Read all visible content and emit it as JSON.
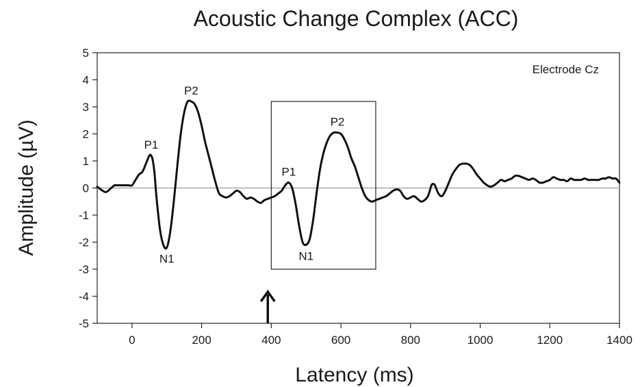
{
  "chart_data": {
    "type": "line",
    "title": "Acoustic Change Complex (ACC)",
    "xlabel": "Latency (ms)",
    "ylabel": "Amplitude (µV)",
    "xlim": [
      -100,
      1400
    ],
    "ylim": [
      -5,
      5
    ],
    "xticks": [
      0,
      200,
      400,
      600,
      800,
      1000,
      1200,
      1400
    ],
    "yticks": [
      5,
      4,
      3,
      2,
      1,
      0,
      -1,
      -2,
      -3,
      -4,
      -5
    ],
    "grid": false,
    "zero_line": true,
    "inset_label": "Electrode Cz",
    "box": {
      "x": [
        400,
        700
      ],
      "y": [
        -3,
        3.2
      ]
    },
    "arrow_at_x": 390,
    "peak_labels": [
      {
        "text": "P1",
        "x": 55,
        "y": 1.2
      },
      {
        "text": "N1",
        "x": 100,
        "y": -2.2
      },
      {
        "text": "P2",
        "x": 170,
        "y": 3.2
      },
      {
        "text": "P1",
        "x": 450,
        "y": 0.2
      },
      {
        "text": "N1",
        "x": 500,
        "y": -2.1
      },
      {
        "text": "P2",
        "x": 590,
        "y": 2.05
      }
    ],
    "series": [
      {
        "x": [
          -100,
          -90,
          -75,
          -60,
          -50,
          -40,
          -25,
          -10,
          0,
          10,
          20,
          30,
          40,
          50,
          55,
          60,
          65,
          70,
          80,
          90,
          100,
          110,
          120,
          130,
          140,
          150,
          160,
          170,
          180,
          190,
          200,
          210,
          220,
          230,
          240,
          250,
          260,
          270,
          280,
          290,
          300,
          310,
          320,
          330,
          340,
          350,
          360,
          370,
          380,
          390,
          400,
          410,
          420,
          430,
          440,
          450,
          460,
          470,
          480,
          490,
          500,
          510,
          520,
          530,
          540,
          550,
          560,
          570,
          580,
          590,
          600,
          610,
          620,
          630,
          640,
          650,
          660,
          670,
          680,
          690,
          700,
          710,
          720,
          730,
          740,
          750,
          760,
          770,
          780,
          790,
          800,
          810,
          820,
          830,
          840,
          850,
          860,
          865,
          870,
          880,
          890,
          900,
          910,
          920,
          930,
          940,
          950,
          960,
          970,
          980,
          990,
          1000,
          1010,
          1020,
          1030,
          1040,
          1050,
          1060,
          1070,
          1080,
          1090,
          1100,
          1110,
          1120,
          1130,
          1140,
          1150,
          1160,
          1170,
          1180,
          1190,
          1200,
          1210,
          1220,
          1230,
          1240,
          1250,
          1260,
          1270,
          1280,
          1290,
          1300,
          1310,
          1320,
          1330,
          1340,
          1350,
          1360,
          1370,
          1380,
          1390,
          1400
        ],
        "y": [
          0.05,
          -0.05,
          -0.15,
          0.0,
          0.1,
          0.1,
          0.1,
          0.1,
          0.1,
          0.3,
          0.5,
          0.6,
          0.9,
          1.2,
          1.2,
          1.0,
          0.5,
          -0.3,
          -1.5,
          -2.1,
          -2.2,
          -1.6,
          -0.5,
          0.8,
          2.0,
          2.8,
          3.2,
          3.2,
          3.1,
          2.8,
          2.3,
          1.7,
          1.2,
          0.7,
          0.2,
          -0.2,
          -0.3,
          -0.35,
          -0.3,
          -0.2,
          -0.1,
          -0.15,
          -0.3,
          -0.4,
          -0.35,
          -0.4,
          -0.5,
          -0.55,
          -0.45,
          -0.4,
          -0.35,
          -0.3,
          -0.2,
          -0.1,
          0.1,
          0.2,
          0.0,
          -0.6,
          -1.4,
          -2.0,
          -2.1,
          -1.9,
          -1.2,
          -0.2,
          0.7,
          1.3,
          1.7,
          1.95,
          2.05,
          2.05,
          2.0,
          1.8,
          1.5,
          1.1,
          0.8,
          0.4,
          0.0,
          -0.3,
          -0.45,
          -0.5,
          -0.45,
          -0.4,
          -0.35,
          -0.3,
          -0.2,
          -0.1,
          -0.05,
          -0.1,
          -0.3,
          -0.4,
          -0.35,
          -0.3,
          -0.4,
          -0.5,
          -0.45,
          -0.3,
          0.1,
          0.15,
          0.1,
          -0.2,
          -0.3,
          -0.1,
          0.2,
          0.5,
          0.7,
          0.85,
          0.9,
          0.9,
          0.85,
          0.7,
          0.5,
          0.35,
          0.2,
          0.1,
          0.05,
          0.1,
          0.2,
          0.3,
          0.25,
          0.3,
          0.35,
          0.45,
          0.45,
          0.4,
          0.35,
          0.3,
          0.35,
          0.3,
          0.2,
          0.2,
          0.25,
          0.3,
          0.4,
          0.35,
          0.3,
          0.3,
          0.25,
          0.35,
          0.3,
          0.3,
          0.3,
          0.35,
          0.3,
          0.3,
          0.3,
          0.3,
          0.35,
          0.35,
          0.4,
          0.35,
          0.35,
          0.2
        ]
      }
    ]
  }
}
